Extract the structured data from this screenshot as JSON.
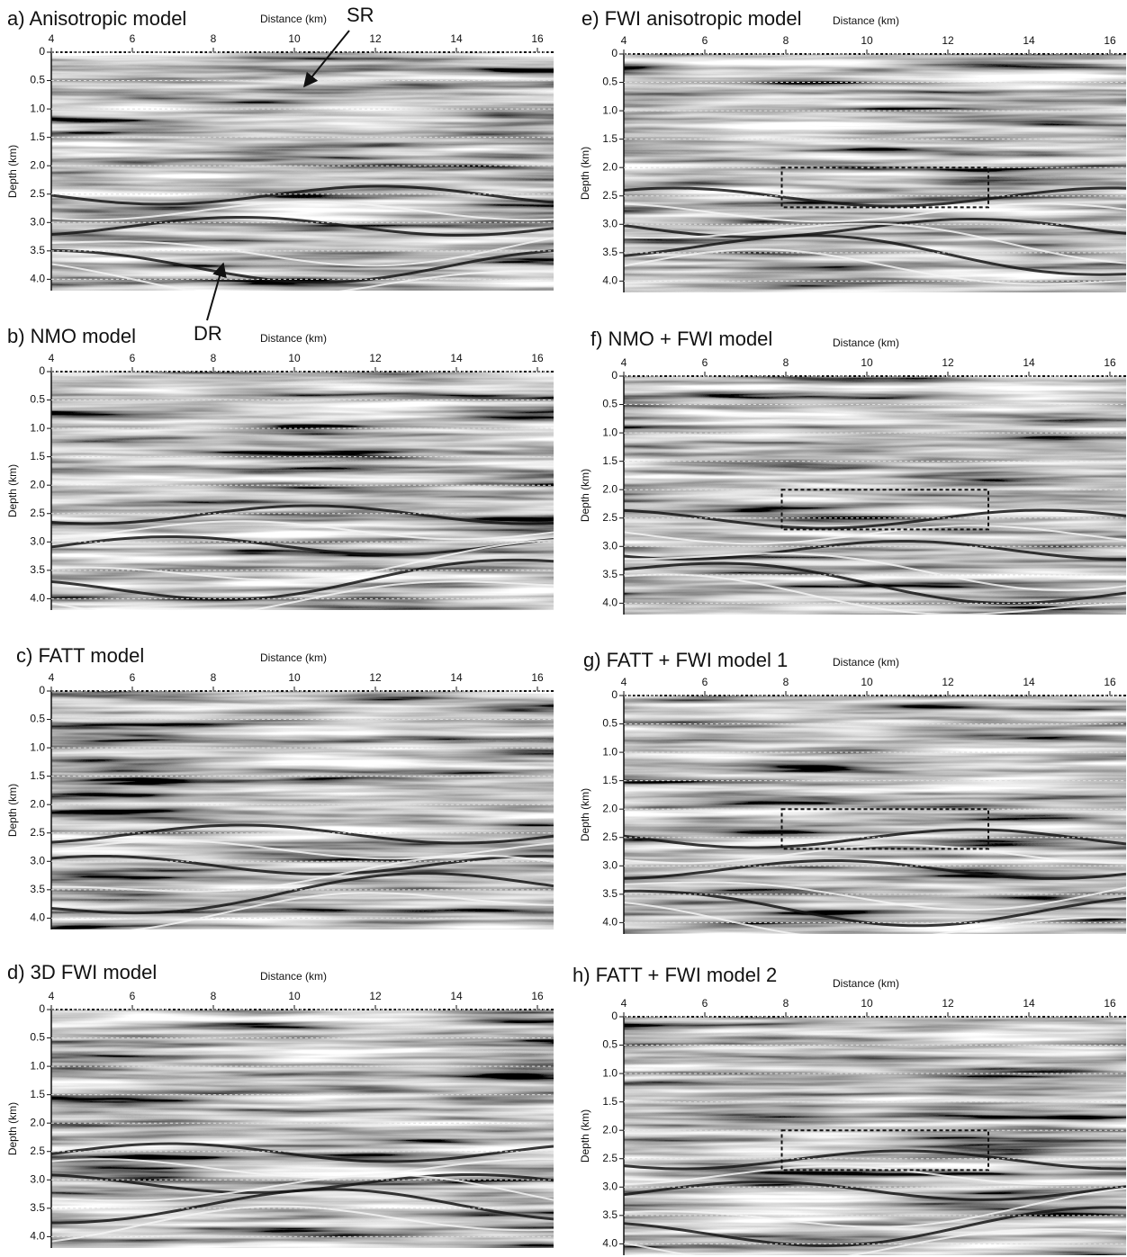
{
  "panels": [
    {
      "title": "a) Anisotropic model",
      "x_label": "Distance (km)",
      "y_label": "Depth (km)",
      "xlim": [
        4,
        16.4
      ],
      "xticks": [
        4,
        6,
        8,
        10,
        12,
        14,
        16
      ],
      "ylim": [
        0,
        4.2
      ],
      "yticks": [
        0,
        0.5,
        {
          "value": 1,
          "label": "1.0"
        },
        1.5,
        {
          "value": 2,
          "label": "2.0"
        },
        2.5,
        {
          "value": 3,
          "label": "3.0"
        },
        3.5,
        {
          "value": 4,
          "label": "4.0"
        }
      ],
      "annotations": [
        "SR",
        "DR"
      ]
    },
    {
      "title": "b) NMO model",
      "x_label": "Distance (km)",
      "y_label": "Depth (km)",
      "xlim": [
        4,
        16.4
      ],
      "xticks": [
        4,
        6,
        8,
        10,
        12,
        14,
        16
      ],
      "ylim": [
        0,
        4.2
      ],
      "yticks": [
        0,
        0.5,
        {
          "value": 1,
          "label": "1.0"
        },
        1.5,
        {
          "value": 2,
          "label": "2.0"
        },
        2.5,
        {
          "value": 3,
          "label": "3.0"
        },
        3.5,
        {
          "value": 4,
          "label": "4.0"
        }
      ]
    },
    {
      "title": "c) FATT model",
      "x_label": "Distance (km)",
      "y_label": "Depth (km)",
      "xlim": [
        4,
        16.4
      ],
      "xticks": [
        4,
        6,
        8,
        10,
        12,
        14,
        16
      ],
      "ylim": [
        0,
        4.2
      ],
      "yticks": [
        0,
        0.5,
        {
          "value": 1,
          "label": "1.0"
        },
        1.5,
        {
          "value": 2,
          "label": "2.0"
        },
        2.5,
        {
          "value": 3,
          "label": "3.0"
        },
        3.5,
        {
          "value": 4,
          "label": "4.0"
        }
      ]
    },
    {
      "title": "d) 3D FWI model",
      "x_label": "Distance (km)",
      "y_label": "Depth (km)",
      "xlim": [
        4,
        16.4
      ],
      "xticks": [
        4,
        6,
        8,
        10,
        12,
        14,
        16
      ],
      "ylim": [
        0,
        4.2
      ],
      "yticks": [
        0,
        0.5,
        {
          "value": 1,
          "label": "1.0"
        },
        1.5,
        {
          "value": 2,
          "label": "2.0"
        },
        2.5,
        {
          "value": 3,
          "label": "3.0"
        },
        3.5,
        {
          "value": 4,
          "label": "4.0"
        }
      ]
    },
    {
      "title": "e) FWI anisotropic model",
      "x_label": "Distance (km)",
      "y_label": "Depth (km)",
      "xlim": [
        4,
        16.4
      ],
      "xticks": [
        4,
        6,
        8,
        10,
        12,
        14,
        16
      ],
      "ylim": [
        0,
        4.2
      ],
      "yticks": [
        0,
        0.5,
        {
          "value": 1,
          "label": "1.0"
        },
        1.5,
        {
          "value": 2,
          "label": "2.0"
        },
        2.5,
        {
          "value": 3,
          "label": "3.0"
        },
        3.5,
        {
          "value": 4,
          "label": "4.0"
        }
      ],
      "box": {
        "x": [
          7.9,
          13
        ],
        "y": [
          2,
          2.7
        ]
      }
    },
    {
      "title": "f) NMO + FWI model",
      "x_label": "Distance (km)",
      "y_label": "Depth (km)",
      "xlim": [
        4,
        16.4
      ],
      "xticks": [
        4,
        6,
        8,
        10,
        12,
        14,
        16
      ],
      "ylim": [
        0,
        4.2
      ],
      "yticks": [
        0,
        0.5,
        {
          "value": 1,
          "label": "1.0"
        },
        1.5,
        {
          "value": 2,
          "label": "2.0"
        },
        2.5,
        {
          "value": 3,
          "label": "3.0"
        },
        3.5,
        {
          "value": 4,
          "label": "4.0"
        }
      ],
      "box": {
        "x": [
          7.9,
          13
        ],
        "y": [
          2,
          2.7
        ]
      }
    },
    {
      "title": "g) FATT + FWI model 1",
      "x_label": "Distance (km)",
      "y_label": "Depth (km)",
      "xlim": [
        4,
        16.4
      ],
      "xticks": [
        4,
        6,
        8,
        10,
        12,
        14,
        16
      ],
      "ylim": [
        0,
        4.2
      ],
      "yticks": [
        0,
        0.5,
        {
          "value": 1,
          "label": "1.0"
        },
        1.5,
        {
          "value": 2,
          "label": "2.0"
        },
        2.5,
        {
          "value": 3,
          "label": "3.0"
        },
        3.5,
        {
          "value": 4,
          "label": "4.0"
        }
      ],
      "box": {
        "x": [
          7.9,
          13
        ],
        "y": [
          2,
          2.7
        ]
      }
    },
    {
      "title": "h) FATT + FWI model 2",
      "x_label": "Distance (km)",
      "y_label": "Depth (km)",
      "xlim": [
        4,
        16.4
      ],
      "xticks": [
        4,
        6,
        8,
        10,
        12,
        14,
        16
      ],
      "ylim": [
        0,
        4.2
      ],
      "yticks": [
        0,
        0.5,
        {
          "value": 1,
          "label": "1.0"
        },
        1.5,
        {
          "value": 2,
          "label": "2.0"
        },
        2.5,
        {
          "value": 3,
          "label": "3.0"
        },
        3.5,
        {
          "value": 4,
          "label": "4.0"
        }
      ],
      "box": {
        "x": [
          7.9,
          13
        ],
        "y": [
          2,
          2.7
        ]
      }
    }
  ]
}
